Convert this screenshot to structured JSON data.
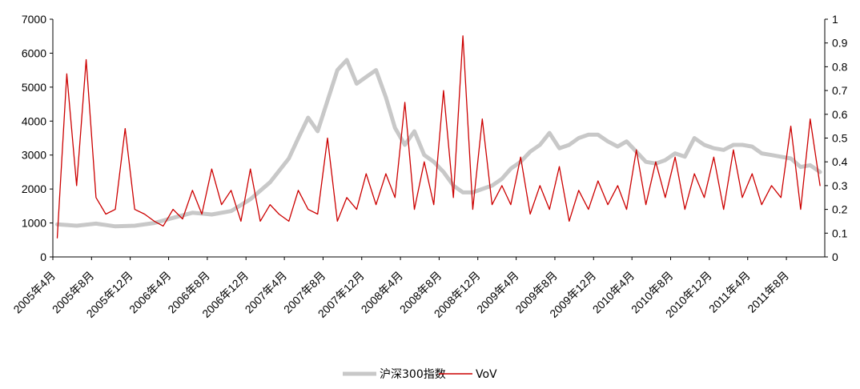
{
  "chart_data": {
    "type": "line",
    "title": "",
    "xlabel": "",
    "x_tick_labels": [
      "2005年4月",
      "2005年8月",
      "2005年12月",
      "2006年4月",
      "2006年8月",
      "2006年12月",
      "2007年4月",
      "2007年8月",
      "2007年12月",
      "2008年4月",
      "2008年8月",
      "2008年12月",
      "2009年4月",
      "2009年8月",
      "2009年12月",
      "2010年4月",
      "2010年8月",
      "2010年12月",
      "2011年4月",
      "2011年8月"
    ],
    "y_left": {
      "ylim": [
        0,
        7000
      ],
      "ticks": [
        "0",
        "1000",
        "2000",
        "3000",
        "4000",
        "5000",
        "6000",
        "7000"
      ]
    },
    "y_right": {
      "ylim": [
        0,
        1
      ],
      "ticks": [
        "0",
        "0.1",
        "0.2",
        "0.3",
        "0.4",
        "0.5",
        "0.6",
        "0.7",
        "0.8",
        "0.9",
        "1"
      ]
    },
    "legend_position": "bottom",
    "series": [
      {
        "name": "沪深300指数",
        "axis": "left",
        "color": "#c8c8c8",
        "x": [
          "2005-04",
          "2005-06",
          "2005-08",
          "2005-10",
          "2005-12",
          "2006-02",
          "2006-04",
          "2006-06",
          "2006-08",
          "2006-10",
          "2006-12",
          "2007-02",
          "2007-04",
          "2007-05",
          "2007-06",
          "2007-07",
          "2007-08",
          "2007-09",
          "2007-10",
          "2007-11",
          "2007-12",
          "2008-01",
          "2008-02",
          "2008-03",
          "2008-04",
          "2008-05",
          "2008-06",
          "2008-07",
          "2008-08",
          "2008-09",
          "2008-10",
          "2008-11",
          "2008-12",
          "2009-01",
          "2009-02",
          "2009-03",
          "2009-04",
          "2009-05",
          "2009-06",
          "2009-07",
          "2009-08",
          "2009-09",
          "2009-10",
          "2009-11",
          "2009-12",
          "2010-01",
          "2010-02",
          "2010-03",
          "2010-04",
          "2010-05",
          "2010-06",
          "2010-07",
          "2010-08",
          "2010-09",
          "2010-10",
          "2010-11",
          "2010-12",
          "2011-01",
          "2011-02",
          "2011-03",
          "2011-04",
          "2011-05",
          "2011-06",
          "2011-07",
          "2011-08",
          "2011-09",
          "2011-10",
          "2011-11"
        ],
        "values": [
          960,
          920,
          980,
          900,
          920,
          1000,
          1150,
          1300,
          1250,
          1350,
          1700,
          2200,
          2900,
          3500,
          4100,
          3700,
          4600,
          5500,
          5800,
          5100,
          5300,
          5500,
          4700,
          3800,
          3300,
          3700,
          3000,
          2800,
          2500,
          2100,
          1900,
          1900,
          2000,
          2100,
          2300,
          2600,
          2800,
          3100,
          3300,
          3650,
          3200,
          3300,
          3500,
          3600,
          3600,
          3400,
          3250,
          3400,
          3100,
          2800,
          2750,
          2850,
          3050,
          2950,
          3500,
          3300,
          3200,
          3150,
          3300,
          3300,
          3250,
          3050,
          3000,
          2950,
          2900,
          2650,
          2700,
          2500
        ]
      },
      {
        "name": "VoV",
        "axis": "right",
        "color": "#cc0000",
        "x": [
          "2005-04",
          "2005-05",
          "2005-06",
          "2005-07",
          "2005-08",
          "2005-09",
          "2005-10",
          "2005-11",
          "2005-12",
          "2006-01",
          "2006-02",
          "2006-03",
          "2006-04",
          "2006-05",
          "2006-06",
          "2006-07",
          "2006-08",
          "2006-09",
          "2006-10",
          "2006-11",
          "2006-12",
          "2007-01",
          "2007-02",
          "2007-03",
          "2007-04",
          "2007-05",
          "2007-06",
          "2007-07",
          "2007-08",
          "2007-09",
          "2007-10",
          "2007-11",
          "2007-12",
          "2008-01",
          "2008-02",
          "2008-03",
          "2008-04",
          "2008-05",
          "2008-06",
          "2008-07",
          "2008-08",
          "2008-09",
          "2008-10",
          "2008-11",
          "2008-12",
          "2009-01",
          "2009-02",
          "2009-03",
          "2009-04",
          "2009-05",
          "2009-06",
          "2009-07",
          "2009-08",
          "2009-09",
          "2009-10",
          "2009-11",
          "2009-12",
          "2010-01",
          "2010-02",
          "2010-03",
          "2010-04",
          "2010-05",
          "2010-06",
          "2010-07",
          "2010-08",
          "2010-09",
          "2010-10",
          "2010-11",
          "2010-12",
          "2011-01",
          "2011-02",
          "2011-03",
          "2011-04",
          "2011-05",
          "2011-06",
          "2011-07",
          "2011-08",
          "2011-09",
          "2011-10",
          "2011-11"
        ],
        "values": [
          0.08,
          0.77,
          0.3,
          0.83,
          0.25,
          0.18,
          0.2,
          0.54,
          0.2,
          0.18,
          0.15,
          0.13,
          0.2,
          0.16,
          0.28,
          0.18,
          0.37,
          0.22,
          0.28,
          0.15,
          0.37,
          0.15,
          0.22,
          0.18,
          0.15,
          0.28,
          0.2,
          0.18,
          0.5,
          0.15,
          0.25,
          0.2,
          0.35,
          0.22,
          0.35,
          0.25,
          0.65,
          0.2,
          0.4,
          0.22,
          0.7,
          0.25,
          0.93,
          0.2,
          0.58,
          0.22,
          0.3,
          0.22,
          0.42,
          0.18,
          0.3,
          0.2,
          0.38,
          0.15,
          0.28,
          0.2,
          0.32,
          0.22,
          0.3,
          0.2,
          0.45,
          0.22,
          0.4,
          0.25,
          0.42,
          0.2,
          0.35,
          0.25,
          0.42,
          0.2,
          0.45,
          0.25,
          0.35,
          0.22,
          0.3,
          0.25,
          0.55,
          0.2,
          0.58,
          0.3
        ]
      }
    ]
  }
}
